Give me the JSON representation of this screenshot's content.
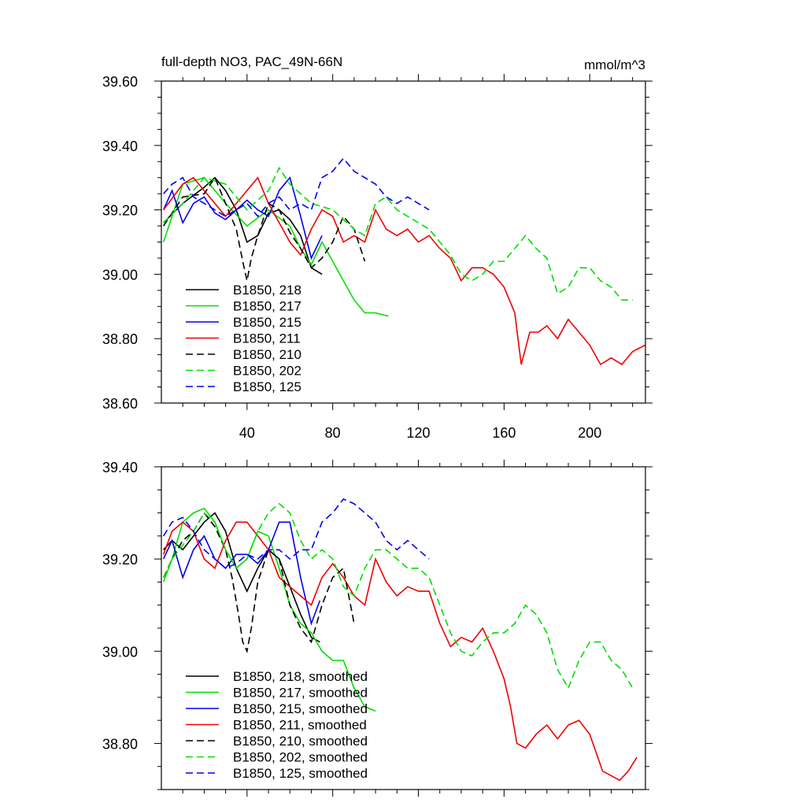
{
  "chart_data": [
    {
      "type": "line",
      "title": "full-depth NO3, PAC_49N-66N",
      "units": "mmol/m^3",
      "xlim": [
        0,
        226
      ],
      "ylim": [
        38.6,
        39.6
      ],
      "x_ticks": [
        40,
        80,
        120,
        160,
        200
      ],
      "x_tick_labels": [
        "40",
        "80",
        "120",
        "160",
        "200"
      ],
      "y_ticks": [
        38.6,
        38.8,
        39.0,
        39.2,
        39.4,
        39.6
      ],
      "y_tick_labels": [
        "38.60",
        "38.80",
        "39.00",
        "39.20",
        "39.40",
        "39.60"
      ],
      "legend_position": "bottom-left",
      "series": [
        {
          "name": "B1850, 218",
          "color": "#000000",
          "dash": "solid",
          "x": [
            1,
            10,
            20,
            25,
            30,
            35,
            40,
            45,
            50,
            55,
            60,
            65,
            70,
            75
          ],
          "values": [
            39.16,
            39.22,
            39.27,
            39.3,
            39.26,
            39.2,
            39.1,
            39.12,
            39.19,
            39.2,
            39.17,
            39.12,
            39.02,
            39.0
          ]
        },
        {
          "name": "B1850, 217",
          "color": "#00dd00",
          "dash": "solid",
          "x": [
            1,
            10,
            20,
            30,
            40,
            50,
            60,
            65,
            70,
            75,
            80,
            85,
            90,
            95,
            100,
            106
          ],
          "values": [
            39.1,
            39.28,
            39.3,
            39.22,
            39.15,
            39.2,
            39.15,
            39.08,
            39.03,
            39.1,
            39.04,
            38.98,
            38.92,
            38.88,
            38.88,
            38.87
          ]
        },
        {
          "name": "B1850, 215",
          "color": "#0000ee",
          "dash": "solid",
          "x": [
            1,
            5,
            10,
            15,
            20,
            25,
            30,
            35,
            40,
            45,
            50,
            55,
            60,
            65,
            70,
            75
          ],
          "values": [
            39.2,
            39.26,
            39.16,
            39.22,
            39.24,
            39.19,
            39.17,
            39.2,
            39.23,
            39.2,
            39.18,
            39.26,
            39.3,
            39.18,
            39.05,
            39.12
          ]
        },
        {
          "name": "B1850, 211",
          "color": "#ee0000",
          "dash": "solid",
          "x": [
            1,
            10,
            15,
            20,
            30,
            40,
            45,
            50,
            55,
            60,
            65,
            70,
            75,
            80,
            85,
            90,
            95,
            100,
            105,
            110,
            115,
            120,
            125,
            130,
            135,
            140,
            145,
            150,
            155,
            160,
            165,
            168,
            172,
            176,
            180,
            185,
            190,
            195,
            200,
            205,
            210,
            215,
            220,
            226
          ],
          "values": [
            39.2,
            39.28,
            39.3,
            39.26,
            39.18,
            39.26,
            39.3,
            39.22,
            39.16,
            39.1,
            39.06,
            39.14,
            39.2,
            39.18,
            39.1,
            39.12,
            39.1,
            39.2,
            39.14,
            39.12,
            39.14,
            39.1,
            39.12,
            39.08,
            39.05,
            38.98,
            39.02,
            39.02,
            39.0,
            38.96,
            38.88,
            38.72,
            38.82,
            38.82,
            38.84,
            38.8,
            38.86,
            38.82,
            38.78,
            38.72,
            38.74,
            38.72,
            38.76,
            38.78
          ]
        },
        {
          "name": "B1850, 210",
          "color": "#000000",
          "dash": "dashed",
          "x": [
            1,
            10,
            20,
            25,
            30,
            35,
            38,
            40,
            42,
            45,
            50,
            55,
            60,
            65,
            70,
            75,
            80,
            85,
            90,
            95
          ],
          "values": [
            39.15,
            39.24,
            39.25,
            39.3,
            39.22,
            39.14,
            39.04,
            38.98,
            39.05,
            39.12,
            39.22,
            39.2,
            39.13,
            39.08,
            39.02,
            39.05,
            39.1,
            39.18,
            39.14,
            39.04
          ]
        },
        {
          "name": "B1850, 202",
          "color": "#00dd00",
          "dash": "dashed",
          "x": [
            1,
            10,
            20,
            30,
            40,
            50,
            55,
            60,
            70,
            80,
            90,
            95,
            100,
            105,
            110,
            115,
            120,
            125,
            130,
            135,
            140,
            145,
            150,
            155,
            160,
            165,
            170,
            175,
            180,
            185,
            190,
            195,
            200,
            205,
            210,
            215,
            220
          ],
          "values": [
            39.16,
            39.22,
            39.3,
            39.28,
            39.2,
            39.26,
            39.33,
            39.28,
            39.22,
            39.2,
            39.14,
            39.12,
            39.22,
            39.24,
            39.2,
            39.18,
            39.16,
            39.14,
            39.1,
            39.06,
            39.0,
            38.98,
            39.0,
            39.04,
            39.04,
            39.08,
            39.12,
            39.08,
            39.05,
            38.94,
            38.96,
            39.02,
            39.02,
            38.98,
            38.96,
            38.92,
            38.92
          ]
        },
        {
          "name": "B1850, 125",
          "color": "#0000ee",
          "dash": "dashed",
          "x": [
            1,
            5,
            10,
            15,
            20,
            25,
            30,
            35,
            40,
            45,
            50,
            55,
            60,
            65,
            70,
            75,
            80,
            85,
            90,
            95,
            100,
            105,
            110,
            115,
            120,
            125
          ],
          "values": [
            39.25,
            39.28,
            39.3,
            39.24,
            39.22,
            39.2,
            39.18,
            39.2,
            39.22,
            39.18,
            39.22,
            39.24,
            39.2,
            39.22,
            39.2,
            39.3,
            39.32,
            39.36,
            39.32,
            39.3,
            39.28,
            39.24,
            39.22,
            39.24,
            39.22,
            39.2
          ]
        }
      ]
    },
    {
      "type": "line",
      "title": "",
      "xlim": [
        0,
        226
      ],
      "ylim": [
        38.7,
        39.4
      ],
      "x_ticks": [
        40,
        80,
        120,
        160,
        200
      ],
      "x_tick_labels": [],
      "y_ticks": [
        38.8,
        39.0,
        39.2,
        39.4
      ],
      "y_tick_labels": [
        "38.80",
        "39.00",
        "39.20",
        "39.40"
      ],
      "legend_position": "bottom-left",
      "series": [
        {
          "name": "B1850, 218, smoothed",
          "color": "#000000",
          "dash": "solid",
          "x": [
            1,
            5,
            10,
            15,
            20,
            25,
            30,
            35,
            40,
            45,
            50,
            55,
            60,
            65,
            70,
            74
          ],
          "values": [
            39.22,
            39.24,
            39.22,
            39.25,
            39.28,
            39.3,
            39.26,
            39.18,
            39.13,
            39.18,
            39.22,
            39.2,
            39.14,
            39.08,
            39.03,
            39.02
          ]
        },
        {
          "name": "B1850, 217, smoothed",
          "color": "#00dd00",
          "dash": "solid",
          "x": [
            1,
            5,
            10,
            15,
            20,
            25,
            30,
            35,
            40,
            45,
            50,
            55,
            60,
            65,
            70,
            75,
            80,
            85,
            90,
            95,
            100
          ],
          "values": [
            39.15,
            39.2,
            39.28,
            39.3,
            39.31,
            39.28,
            39.22,
            39.18,
            39.2,
            39.26,
            39.25,
            39.18,
            39.1,
            39.06,
            39.04,
            39.0,
            38.98,
            38.98,
            38.92,
            38.88,
            38.87
          ]
        },
        {
          "name": "B1850, 215, smoothed",
          "color": "#0000ee",
          "dash": "solid",
          "x": [
            1,
            5,
            10,
            15,
            20,
            25,
            30,
            35,
            40,
            45,
            50,
            55,
            60,
            65,
            70,
            74
          ],
          "values": [
            39.2,
            39.24,
            39.16,
            39.22,
            39.25,
            39.2,
            39.18,
            39.21,
            39.21,
            39.19,
            39.22,
            39.28,
            39.28,
            39.16,
            39.06,
            39.11
          ]
        },
        {
          "name": "B1850, 211, smoothed",
          "color": "#ee0000",
          "dash": "solid",
          "x": [
            1,
            5,
            10,
            15,
            20,
            25,
            30,
            35,
            40,
            45,
            50,
            55,
            60,
            65,
            70,
            75,
            80,
            85,
            90,
            95,
            100,
            105,
            110,
            115,
            120,
            125,
            130,
            135,
            140,
            145,
            150,
            155,
            160,
            163,
            166,
            170,
            175,
            180,
            185,
            190,
            195,
            200,
            203,
            206,
            210,
            214,
            218,
            222
          ],
          "values": [
            39.21,
            39.26,
            39.28,
            39.26,
            39.2,
            39.18,
            39.24,
            39.28,
            39.28,
            39.25,
            39.22,
            39.16,
            39.14,
            39.12,
            39.1,
            39.16,
            39.19,
            39.16,
            39.12,
            39.1,
            39.2,
            39.15,
            39.12,
            39.14,
            39.13,
            39.13,
            39.06,
            39.01,
            39.03,
            39.02,
            39.05,
            39.0,
            38.94,
            38.88,
            38.8,
            38.79,
            38.82,
            38.84,
            38.81,
            38.84,
            38.85,
            38.82,
            38.78,
            38.74,
            38.73,
            38.72,
            38.74,
            38.77
          ]
        },
        {
          "name": "B1850, 210, smoothed",
          "color": "#000000",
          "dash": "dashed",
          "x": [
            1,
            5,
            10,
            15,
            20,
            25,
            30,
            33,
            36,
            38,
            40,
            42,
            45,
            50,
            55,
            60,
            65,
            70,
            75,
            80,
            85,
            90
          ],
          "values": [
            39.16,
            39.2,
            39.24,
            39.26,
            39.3,
            39.27,
            39.22,
            39.16,
            39.08,
            39.02,
            39.0,
            39.05,
            39.15,
            39.22,
            39.2,
            39.1,
            39.05,
            39.02,
            39.1,
            39.16,
            39.18,
            39.06
          ]
        },
        {
          "name": "B1850, 202, smoothed",
          "color": "#00dd00",
          "dash": "dashed",
          "x": [
            1,
            5,
            10,
            15,
            20,
            25,
            30,
            35,
            40,
            45,
            50,
            55,
            60,
            65,
            70,
            75,
            80,
            85,
            90,
            95,
            100,
            105,
            110,
            115,
            120,
            125,
            130,
            135,
            140,
            145,
            150,
            155,
            160,
            165,
            170,
            175,
            180,
            185,
            190,
            195,
            200,
            205,
            210,
            215,
            220
          ],
          "values": [
            39.16,
            39.2,
            39.23,
            39.26,
            39.3,
            39.28,
            39.22,
            39.18,
            39.2,
            39.26,
            39.3,
            39.32,
            39.3,
            39.24,
            39.2,
            39.22,
            39.2,
            39.14,
            39.12,
            39.18,
            39.22,
            39.22,
            39.2,
            39.18,
            39.18,
            39.16,
            39.1,
            39.04,
            39.0,
            38.99,
            39.02,
            39.04,
            39.04,
            39.06,
            39.1,
            39.08,
            39.04,
            38.96,
            38.92,
            38.98,
            39.02,
            39.02,
            38.98,
            38.96,
            38.92
          ]
        },
        {
          "name": "B1850, 125, smoothed",
          "color": "#0000ee",
          "dash": "dashed",
          "x": [
            1,
            5,
            10,
            15,
            20,
            25,
            30,
            35,
            40,
            45,
            50,
            55,
            60,
            65,
            70,
            75,
            80,
            85,
            90,
            95,
            100,
            105,
            110,
            115,
            120,
            125
          ],
          "values": [
            39.25,
            39.28,
            39.29,
            39.26,
            39.22,
            39.2,
            39.18,
            39.19,
            39.21,
            39.2,
            39.22,
            39.22,
            39.2,
            39.22,
            39.22,
            39.28,
            39.3,
            39.33,
            39.32,
            39.3,
            39.28,
            39.24,
            39.22,
            39.24,
            39.22,
            39.2
          ]
        }
      ]
    }
  ]
}
